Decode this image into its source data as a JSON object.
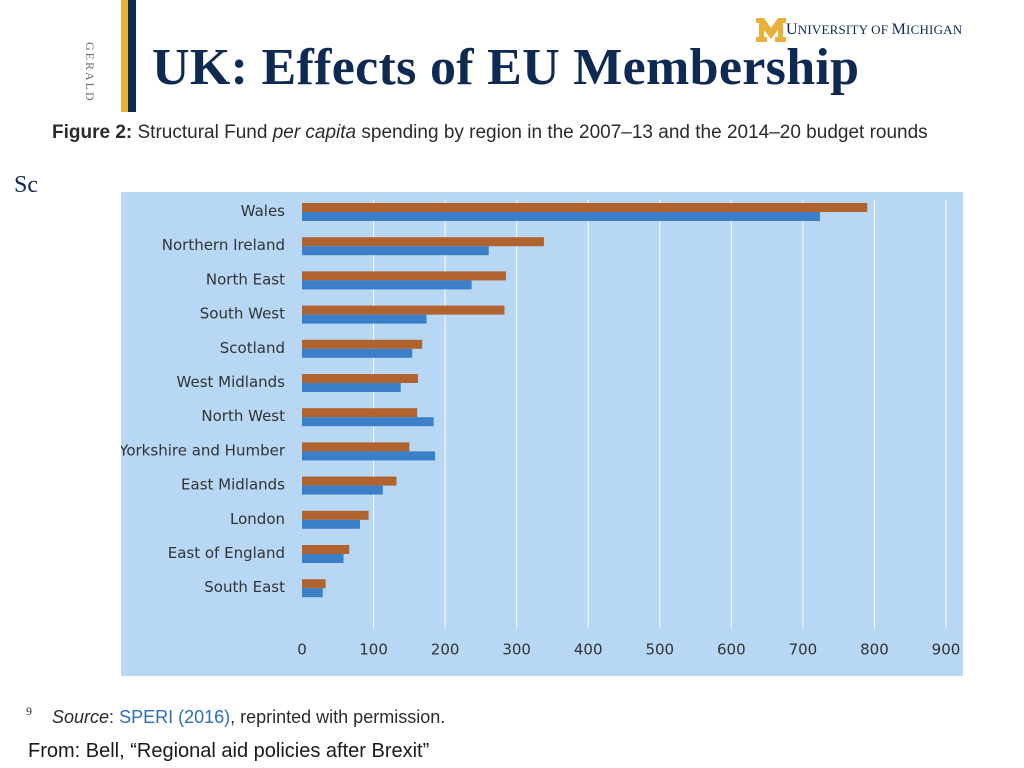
{
  "header": {
    "side_text": "GERALD",
    "logo_first": "U",
    "logo_mid": "NIVERSITY OF ",
    "logo_second": "M",
    "logo_last": "ICHIGAN",
    "title": "UK:  Effects of EU Membership"
  },
  "figure": {
    "label": "Figure 2:",
    "caption_a": " Structural Fund ",
    "caption_em": "per capita",
    "caption_b": " spending by region in the 2007–13 and the 2014–20 budget rounds"
  },
  "side_fragment": "Sc",
  "footer": {
    "page_number": "9",
    "source_label": "Source",
    "source_colon": ": ",
    "source_link": "SPERI (2016)",
    "source_rest": ", reprinted with permission.",
    "from_text": "From:  Bell, “Regional aid policies after Brexit”"
  },
  "colors": {
    "series_2014": "#b0622f",
    "series_2007": "#3c7fc9",
    "plot_bg": "#b7d7f4",
    "gridline": "#ffffff",
    "navy": "#0e2a52",
    "gold": "#e8b23a"
  },
  "chart_data": {
    "type": "bar",
    "orientation": "horizontal",
    "categories": [
      "Wales",
      "Northern Ireland",
      "North East",
      "South West",
      "Scotland",
      "West Midlands",
      "North West",
      "Yorkshire and Humber",
      "East Midlands",
      "London",
      "East of England",
      "South East"
    ],
    "series": [
      {
        "name": "2014-2020",
        "values": [
          790,
          338,
          285,
          283,
          168,
          162,
          161,
          150,
          132,
          93,
          66,
          33
        ]
      },
      {
        "name": "2007-2013",
        "values": [
          724,
          261,
          237,
          174,
          154,
          138,
          184,
          186,
          113,
          81,
          58,
          29
        ]
      }
    ],
    "xlim": [
      0,
      900
    ],
    "xticks": [
      "0",
      "100",
      "200",
      "300",
      "400",
      "500",
      "600",
      "700",
      "800",
      "900"
    ],
    "grid": true,
    "legend_position": "bottom"
  }
}
